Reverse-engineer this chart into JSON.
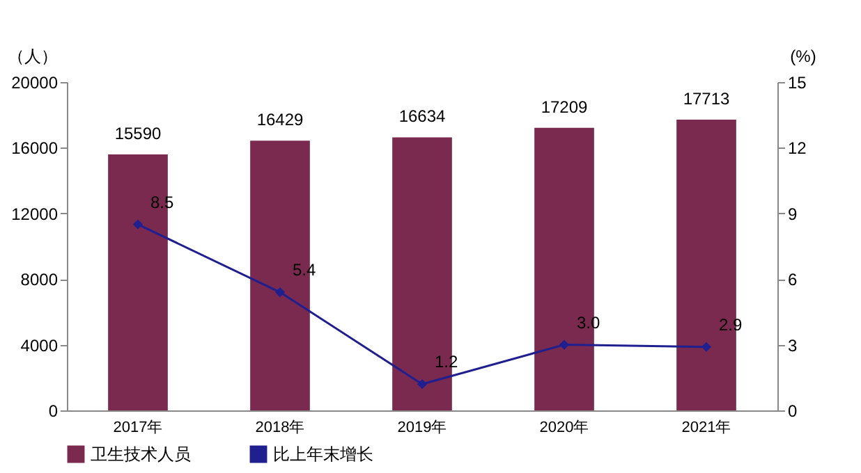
{
  "chart_data": {
    "type": "bar",
    "categories": [
      "2017年",
      "2018年",
      "2019年",
      "2020年",
      "2021年"
    ],
    "ylabel": "（人）",
    "y2label": "(%)",
    "series": [
      {
        "name": "卫生技术人员",
        "type": "bar",
        "color": "#7a2a4f",
        "values": [
          15590,
          16429,
          16634,
          17209,
          17713
        ],
        "value_labels": [
          "15590",
          "16429",
          "16634",
          "17209",
          "17713"
        ]
      },
      {
        "name": "比上年末增长",
        "type": "line",
        "axis": "y2",
        "color": "#1f1f8f",
        "marker": "diamond",
        "values": [
          8.5,
          5.4,
          1.2,
          3.0,
          2.9
        ],
        "value_labels": [
          "8.5",
          "5.4",
          "1.2",
          "3.0",
          "2.9"
        ]
      }
    ],
    "ylim": [
      0,
      20000
    ],
    "yticks": [
      0,
      4000,
      8000,
      12000,
      16000,
      20000
    ],
    "y2lim": [
      0,
      15
    ],
    "y2ticks": [
      0,
      3,
      6,
      9,
      12,
      15
    ],
    "grid": false,
    "legend": "bottom"
  }
}
